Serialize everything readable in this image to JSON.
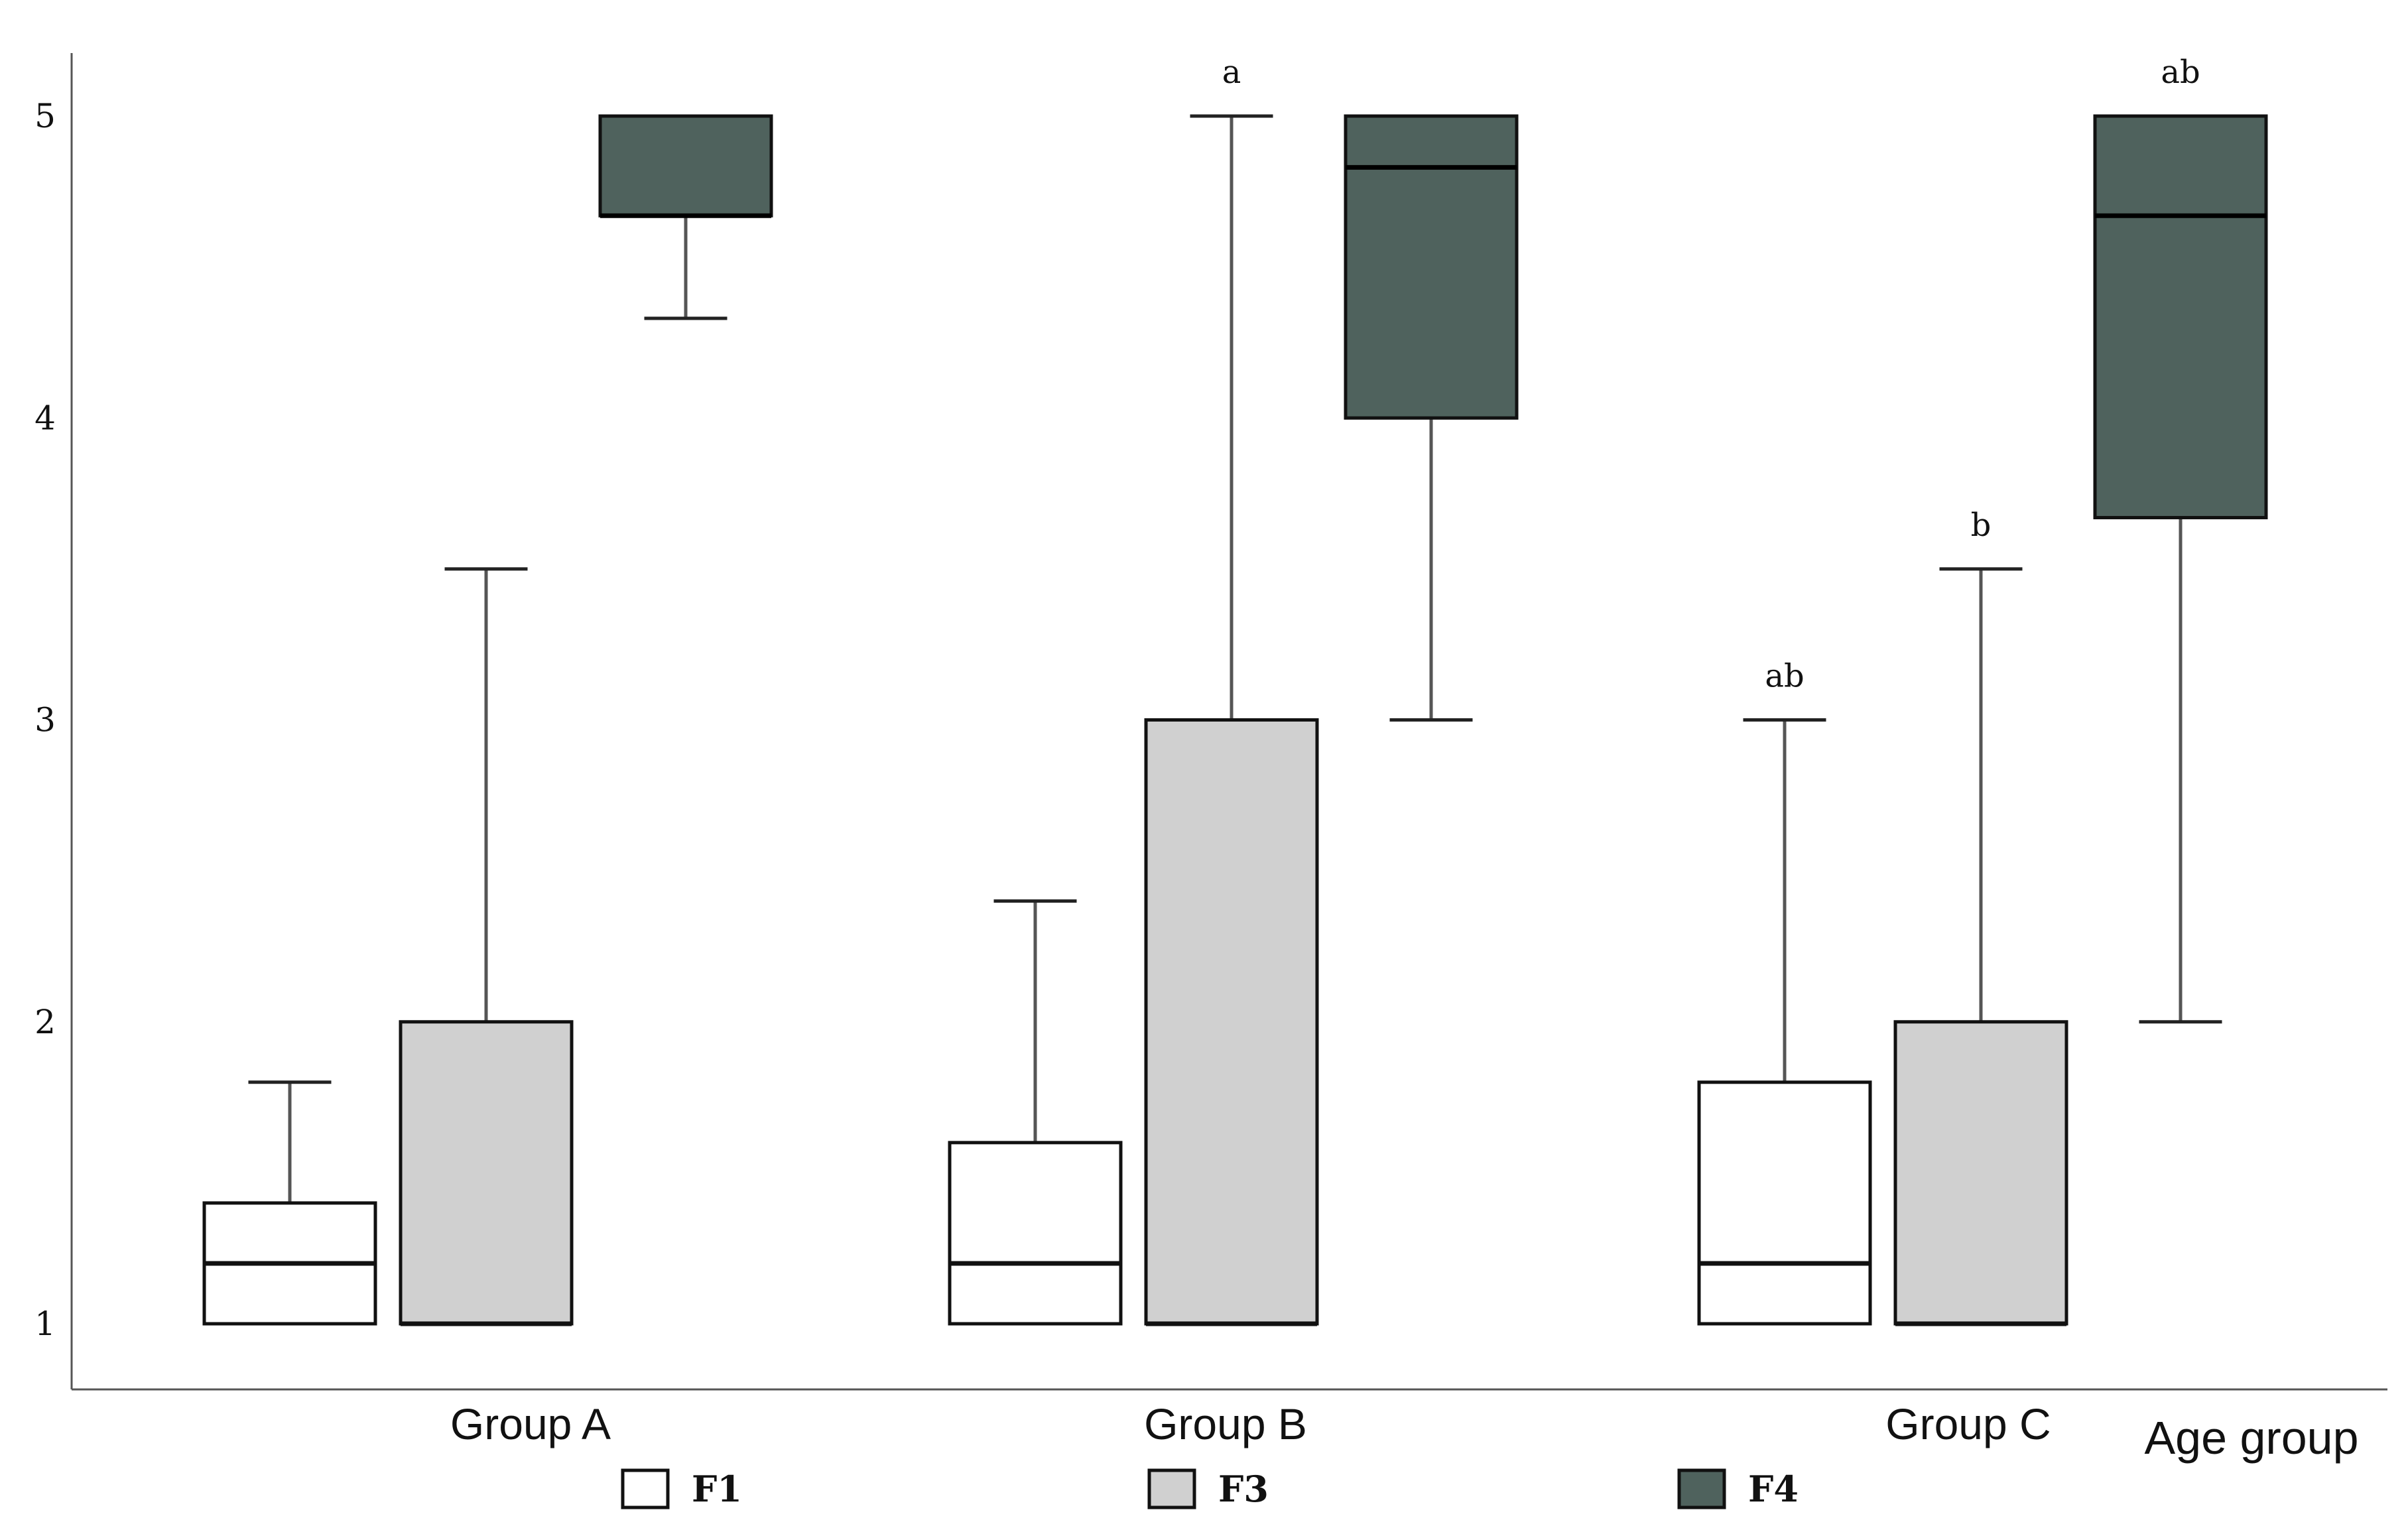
{
  "chart_data": {
    "type": "boxplot",
    "title": "",
    "xlabel": "Age group",
    "ylabel": "",
    "ylim": [
      0.78,
      5.22
    ],
    "yticks": [
      1,
      2,
      3,
      4,
      5
    ],
    "ytick_labels": [
      "1",
      "2",
      "3",
      "4",
      "5"
    ],
    "categories": [
      "Group A",
      "Group B",
      "Group C"
    ],
    "series": [
      {
        "name": "F1",
        "color": "#ffffff",
        "boxes": [
          {
            "whisker_low": 1.0,
            "q1": 1.0,
            "median": 1.2,
            "q3": 1.4,
            "whisker_high": 1.8,
            "label": ""
          },
          {
            "whisker_low": 1.0,
            "q1": 1.0,
            "median": 1.2,
            "q3": 1.6,
            "whisker_high": 2.4,
            "label": ""
          },
          {
            "whisker_low": 1.0,
            "q1": 1.0,
            "median": 1.2,
            "q3": 1.8,
            "whisker_high": 3.0,
            "label": "ab"
          }
        ]
      },
      {
        "name": "F3",
        "color": "#d0d0d0",
        "boxes": [
          {
            "whisker_low": 1.0,
            "q1": 1.0,
            "median": 1.0,
            "q3": 2.0,
            "whisker_high": 3.5,
            "label": ""
          },
          {
            "whisker_low": 1.0,
            "q1": 1.0,
            "median": 1.0,
            "q3": 3.0,
            "whisker_high": 5.0,
            "label": "a"
          },
          {
            "whisker_low": 1.0,
            "q1": 1.0,
            "median": 1.0,
            "q3": 2.0,
            "whisker_high": 3.5,
            "label": "b"
          }
        ]
      },
      {
        "name": "F4",
        "color": "#4f625d",
        "boxes": [
          {
            "whisker_low": 4.33,
            "q1": 4.67,
            "median": 4.67,
            "q3": 5.0,
            "whisker_high": 5.0,
            "label": ""
          },
          {
            "whisker_low": 3.0,
            "q1": 4.0,
            "median": 4.83,
            "q3": 5.0,
            "whisker_high": 5.0,
            "label": ""
          },
          {
            "whisker_low": 2.0,
            "q1": 3.67,
            "median": 4.67,
            "q3": 5.0,
            "whisker_high": 5.0,
            "label": "ab"
          }
        ]
      }
    ],
    "legend": {
      "position": "bottom",
      "entries": [
        "F1",
        "F3",
        "F4"
      ]
    },
    "grid": false
  }
}
